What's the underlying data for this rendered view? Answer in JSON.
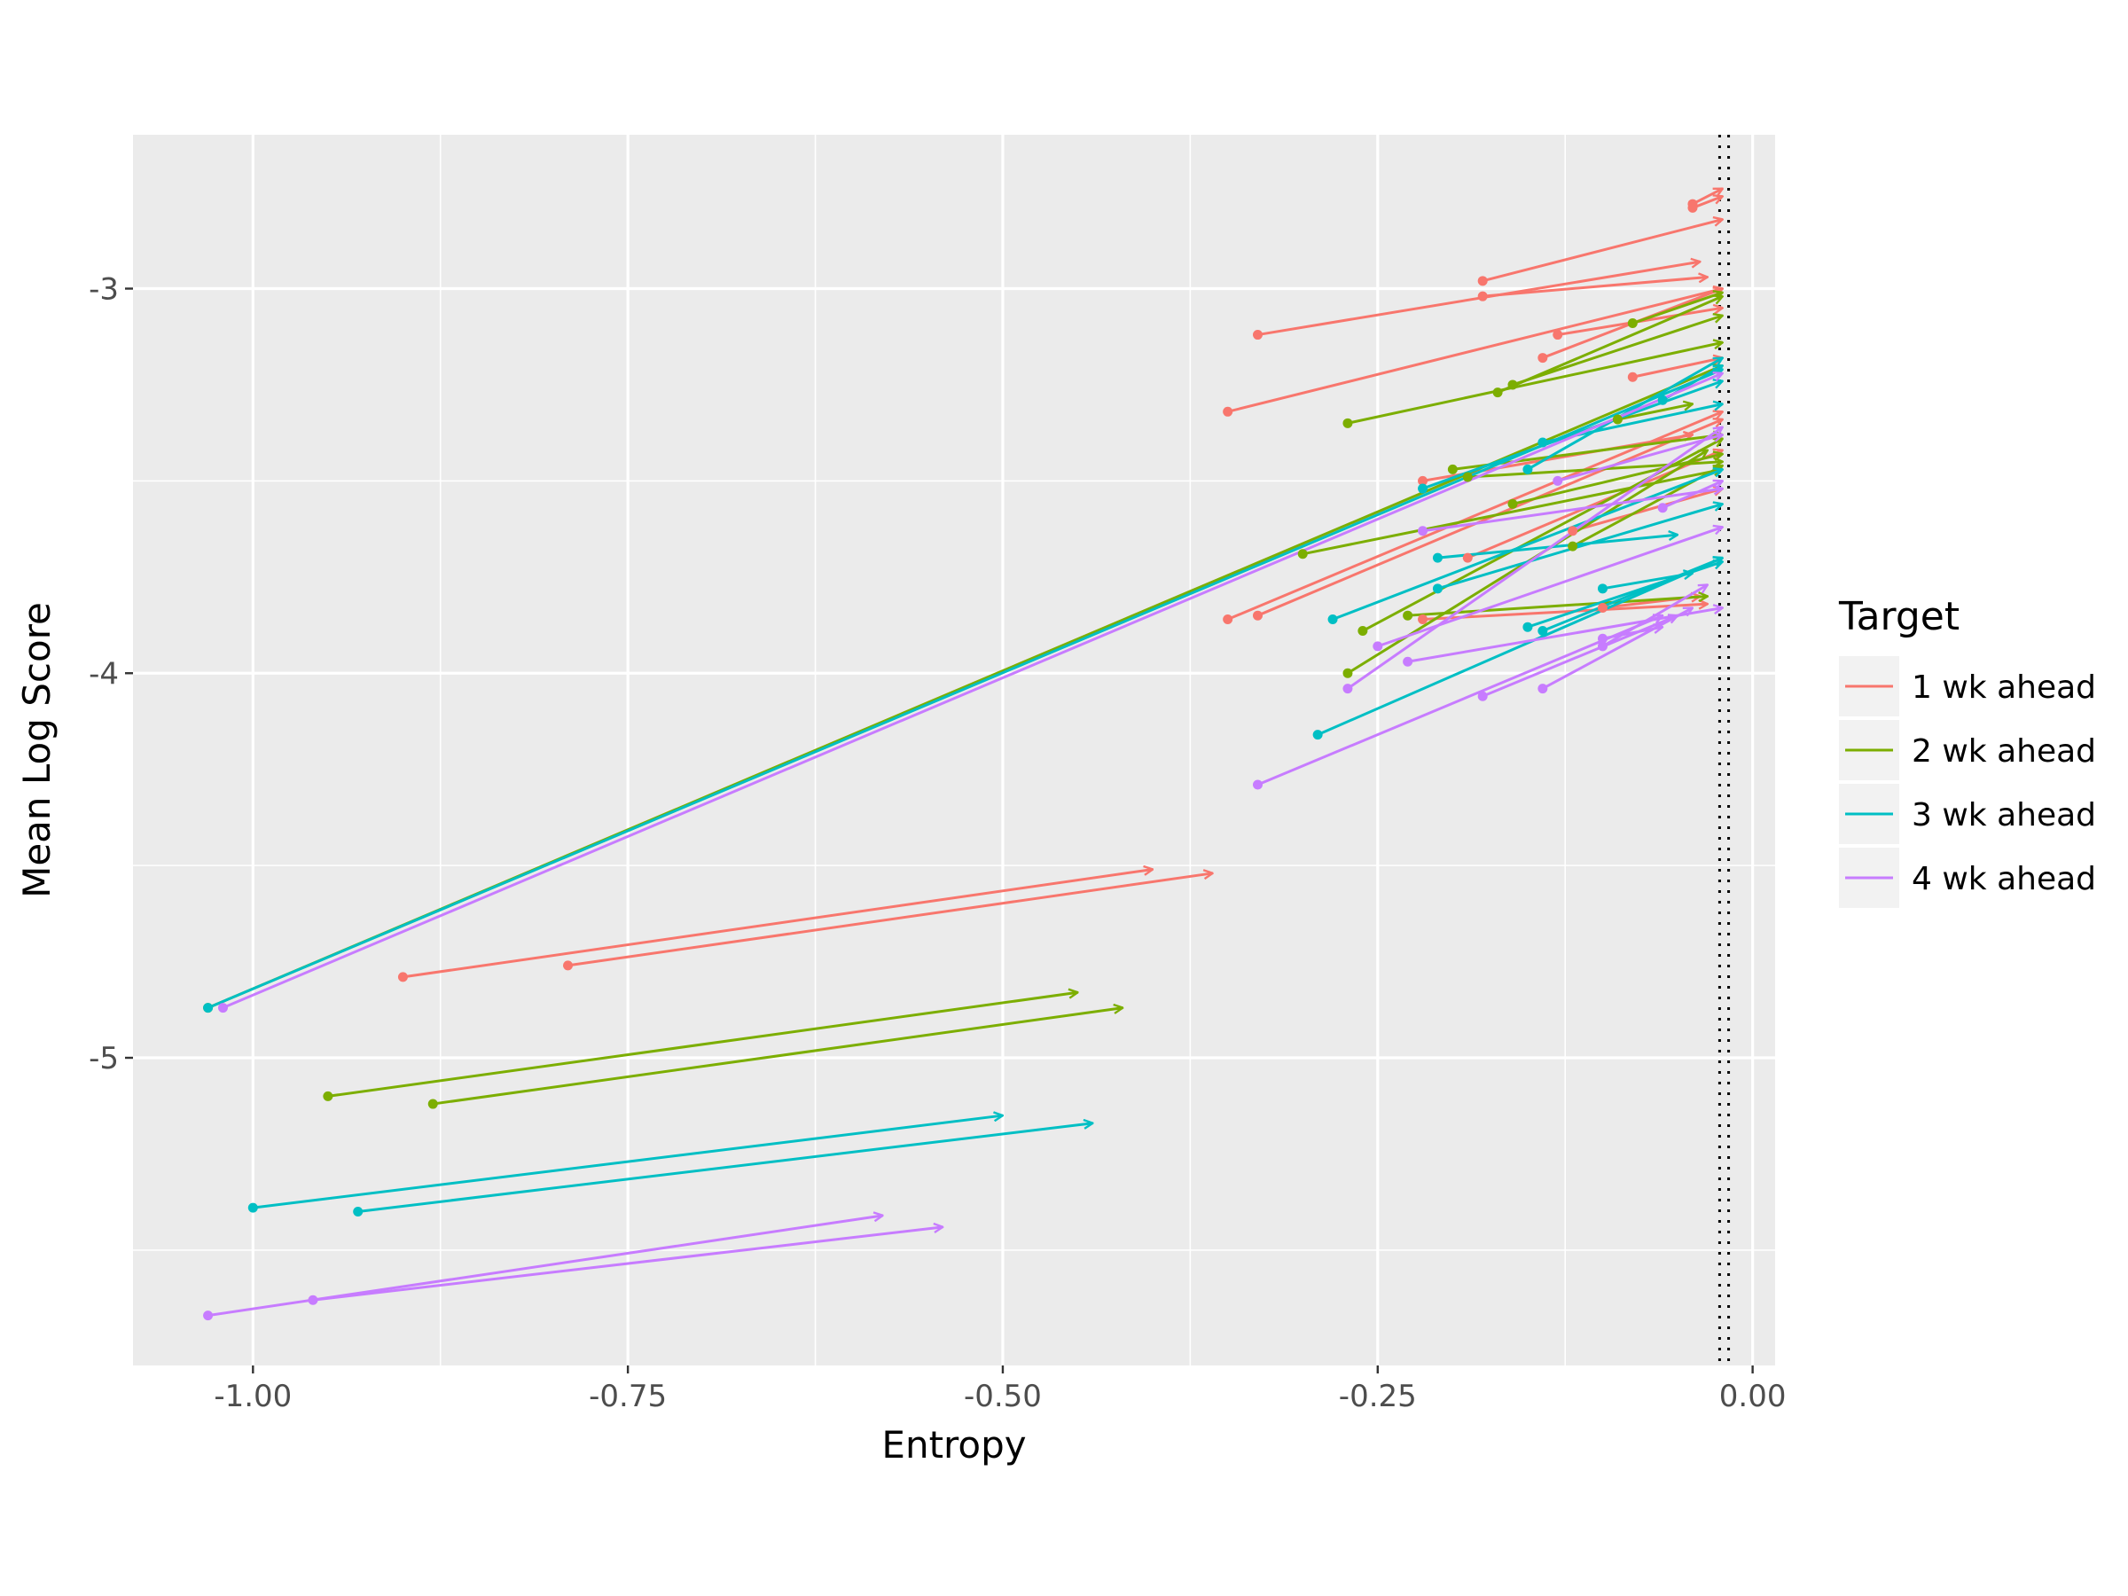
{
  "chart_data": {
    "type": "scatter",
    "xlabel": "Entropy",
    "ylabel": "Mean Log Score",
    "xlim": [
      -1.08,
      0.015
    ],
    "ylim": [
      -5.8,
      -2.6
    ],
    "x_ticks": [
      -1.0,
      -0.75,
      -0.5,
      -0.25,
      0.0
    ],
    "x_tick_labels": [
      "-1.00",
      "-0.75",
      "-0.50",
      "-0.25",
      "0.00"
    ],
    "y_ticks": [
      -5,
      -4,
      -3
    ],
    "y_tick_labels": [
      "-5",
      "-4",
      "-3"
    ],
    "background": "#ebebeb",
    "grid": true,
    "reference_lines": [
      -0.022,
      -0.016
    ],
    "reference_line_style": "dotted",
    "legend": {
      "title": "Target",
      "position": "right"
    },
    "series": [
      {
        "name": "1 wk ahead",
        "color": "#f8766d",
        "arrows": [
          {
            "from": [
              -0.9,
              -4.79
            ],
            "to": [
              -0.4,
              -4.51
            ]
          },
          {
            "from": [
              -0.79,
              -4.76
            ],
            "to": [
              -0.36,
              -4.52
            ]
          },
          {
            "from": [
              -0.35,
              -3.86
            ],
            "to": [
              -0.02,
              -3.32
            ]
          },
          {
            "from": [
              -0.33,
              -3.85
            ],
            "to": [
              -0.02,
              -3.34
            ]
          },
          {
            "from": [
              -0.35,
              -3.32
            ],
            "to": [
              -0.02,
              -3.0
            ]
          },
          {
            "from": [
              -0.33,
              -3.12
            ],
            "to": [
              -0.035,
              -2.93
            ]
          },
          {
            "from": [
              -0.18,
              -3.02
            ],
            "to": [
              -0.03,
              -2.97
            ]
          },
          {
            "from": [
              -0.18,
              -2.98
            ],
            "to": [
              -0.02,
              -2.82
            ]
          },
          {
            "from": [
              -0.14,
              -3.18
            ],
            "to": [
              -0.02,
              -3.0
            ]
          },
          {
            "from": [
              -0.13,
              -3.12
            ],
            "to": [
              -0.02,
              -3.05
            ]
          },
          {
            "from": [
              -0.04,
              -2.79
            ],
            "to": [
              -0.02,
              -2.76
            ]
          },
          {
            "from": [
              -0.04,
              -2.78
            ],
            "to": [
              -0.02,
              -2.74
            ]
          },
          {
            "from": [
              -0.22,
              -3.5
            ],
            "to": [
              -0.04,
              -3.38
            ]
          },
          {
            "from": [
              -0.19,
              -3.7
            ],
            "to": [
              -0.02,
              -3.42
            ]
          },
          {
            "from": [
              -0.12,
              -3.63
            ],
            "to": [
              -0.02,
              -3.52
            ]
          },
          {
            "from": [
              -0.08,
              -3.23
            ],
            "to": [
              -0.02,
              -3.18
            ]
          },
          {
            "from": [
              -0.22,
              -3.86
            ],
            "to": [
              -0.03,
              -3.82
            ]
          },
          {
            "from": [
              -0.1,
              -3.83
            ],
            "to": [
              -0.035,
              -3.8
            ]
          }
        ]
      },
      {
        "name": "2 wk ahead",
        "color": "#7cae00",
        "arrows": [
          {
            "from": [
              -1.03,
              -4.87
            ],
            "to": [
              -0.02,
              -3.2
            ]
          },
          {
            "from": [
              -0.95,
              -5.1
            ],
            "to": [
              -0.45,
              -4.83
            ]
          },
          {
            "from": [
              -0.88,
              -5.12
            ],
            "to": [
              -0.42,
              -4.87
            ]
          },
          {
            "from": [
              -0.3,
              -3.69
            ],
            "to": [
              -0.02,
              -3.47
            ]
          },
          {
            "from": [
              -0.27,
              -3.35
            ],
            "to": [
              -0.02,
              -3.14
            ]
          },
          {
            "from": [
              -0.27,
              -4.0
            ],
            "to": [
              -0.03,
              -3.42
            ]
          },
          {
            "from": [
              -0.26,
              -3.89
            ],
            "to": [
              -0.02,
              -3.39
            ]
          },
          {
            "from": [
              -0.17,
              -3.27
            ],
            "to": [
              -0.02,
              -3.02
            ]
          },
          {
            "from": [
              -0.16,
              -3.25
            ],
            "to": [
              -0.02,
              -3.07
            ]
          },
          {
            "from": [
              -0.2,
              -3.47
            ],
            "to": [
              -0.02,
              -3.38
            ]
          },
          {
            "from": [
              -0.19,
              -3.49
            ],
            "to": [
              -0.02,
              -3.45
            ]
          },
          {
            "from": [
              -0.16,
              -3.56
            ],
            "to": [
              -0.02,
              -3.43
            ]
          },
          {
            "from": [
              -0.08,
              -3.09
            ],
            "to": [
              -0.02,
              -3.01
            ]
          },
          {
            "from": [
              -0.12,
              -3.67
            ],
            "to": [
              -0.02,
              -3.46
            ]
          },
          {
            "from": [
              -0.23,
              -3.85
            ],
            "to": [
              -0.03,
              -3.8
            ]
          },
          {
            "from": [
              -0.09,
              -3.34
            ],
            "to": [
              -0.04,
              -3.3
            ]
          }
        ]
      },
      {
        "name": "3 wk ahead",
        "color": "#00bfc4",
        "arrows": [
          {
            "from": [
              -1.03,
              -4.87
            ],
            "to": [
              -0.02,
              -3.21
            ]
          },
          {
            "from": [
              -1.0,
              -5.39
            ],
            "to": [
              -0.5,
              -5.15
            ]
          },
          {
            "from": [
              -0.93,
              -5.4
            ],
            "to": [
              -0.44,
              -5.17
            ]
          },
          {
            "from": [
              -0.29,
              -4.16
            ],
            "to": [
              -0.02,
              -3.7
            ]
          },
          {
            "from": [
              -0.28,
              -3.86
            ],
            "to": [
              -0.02,
              -3.47
            ]
          },
          {
            "from": [
              -0.22,
              -3.52
            ],
            "to": [
              -0.02,
              -3.24
            ]
          },
          {
            "from": [
              -0.21,
              -3.7
            ],
            "to": [
              -0.05,
              -3.64
            ]
          },
          {
            "from": [
              -0.21,
              -3.78
            ],
            "to": [
              -0.02,
              -3.56
            ]
          },
          {
            "from": [
              -0.14,
              -3.4
            ],
            "to": [
              -0.02,
              -3.3
            ]
          },
          {
            "from": [
              -0.15,
              -3.47
            ],
            "to": [
              -0.02,
              -3.18
            ]
          },
          {
            "from": [
              -0.15,
              -3.88
            ],
            "to": [
              -0.02,
              -3.71
            ]
          },
          {
            "from": [
              -0.14,
              -3.89
            ],
            "to": [
              -0.02,
              -3.7
            ]
          },
          {
            "from": [
              -0.06,
              -3.29
            ],
            "to": [
              -0.02,
              -3.2
            ]
          },
          {
            "from": [
              -0.1,
              -3.78
            ],
            "to": [
              -0.04,
              -3.74
            ]
          }
        ]
      },
      {
        "name": "4 wk ahead",
        "color": "#c77cff",
        "arrows": [
          {
            "from": [
              -1.02,
              -4.87
            ],
            "to": [
              -0.02,
              -3.22
            ]
          },
          {
            "from": [
              -1.03,
              -5.67
            ],
            "to": [
              -0.58,
              -5.41
            ]
          },
          {
            "from": [
              -0.96,
              -5.63
            ],
            "to": [
              -0.54,
              -5.44
            ]
          },
          {
            "from": [
              -0.33,
              -4.29
            ],
            "to": [
              -0.06,
              -3.85
            ]
          },
          {
            "from": [
              -0.27,
              -4.04
            ],
            "to": [
              -0.02,
              -3.36
            ]
          },
          {
            "from": [
              -0.25,
              -3.93
            ],
            "to": [
              -0.02,
              -3.62
            ]
          },
          {
            "from": [
              -0.23,
              -3.97
            ],
            "to": [
              -0.02,
              -3.83
            ]
          },
          {
            "from": [
              -0.18,
              -4.06
            ],
            "to": [
              -0.05,
              -3.85
            ]
          },
          {
            "from": [
              -0.14,
              -4.04
            ],
            "to": [
              -0.04,
              -3.83
            ]
          },
          {
            "from": [
              -0.22,
              -3.63
            ],
            "to": [
              -0.02,
              -3.52
            ]
          },
          {
            "from": [
              -0.13,
              -3.5
            ],
            "to": [
              -0.02,
              -3.38
            ]
          },
          {
            "from": [
              -0.1,
              -3.91
            ],
            "to": [
              -0.06,
              -3.88
            ]
          },
          {
            "from": [
              -0.1,
              -3.93
            ],
            "to": [
              -0.03,
              -3.77
            ]
          },
          {
            "from": [
              -0.06,
              -3.57
            ],
            "to": [
              -0.02,
              -3.5
            ]
          }
        ]
      }
    ]
  }
}
